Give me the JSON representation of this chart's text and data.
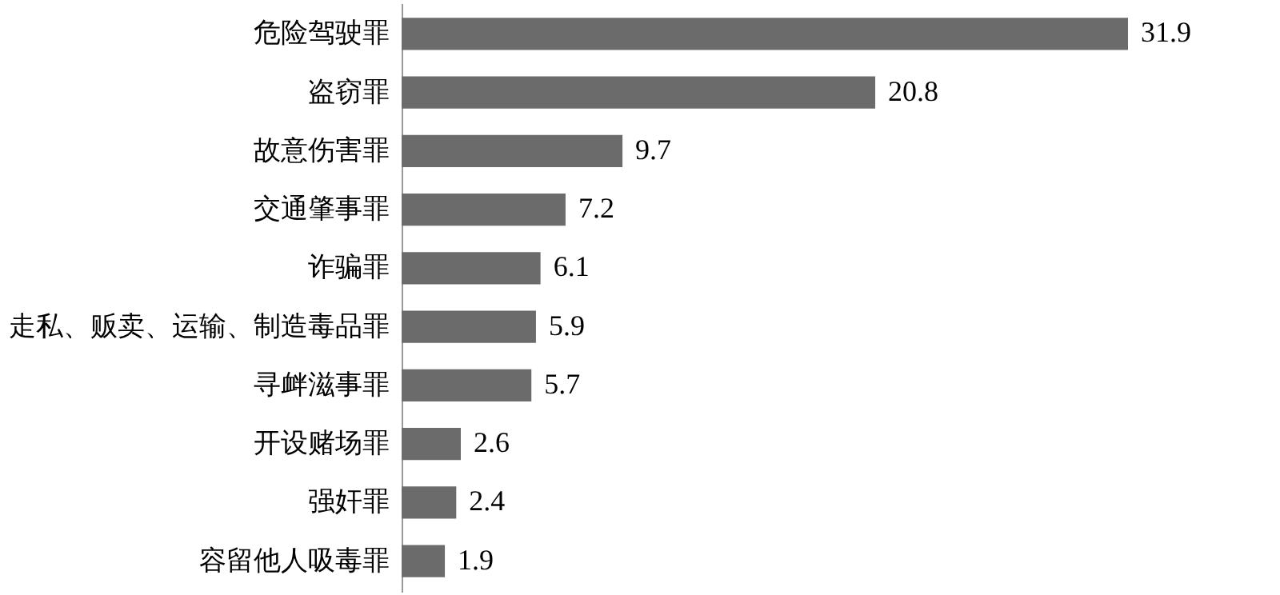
{
  "chart_data": {
    "type": "bar",
    "orientation": "horizontal",
    "categories": [
      "危险驾驶罪",
      "盗窃罪",
      "故意伤害罪",
      "交通肇事罪",
      "诈骗罪",
      "走私、贩卖、运输、制造毒品罪",
      "寻衅滋事罪",
      "开设赌场罪",
      "强奸罪",
      "容留他人吸毒罪"
    ],
    "values": [
      31.9,
      20.8,
      9.7,
      7.2,
      6.1,
      5.9,
      5.7,
      2.6,
      2.4,
      1.9
    ],
    "color": "#6b6b6b",
    "data_labels": true,
    "tick_labels": "y"
  }
}
